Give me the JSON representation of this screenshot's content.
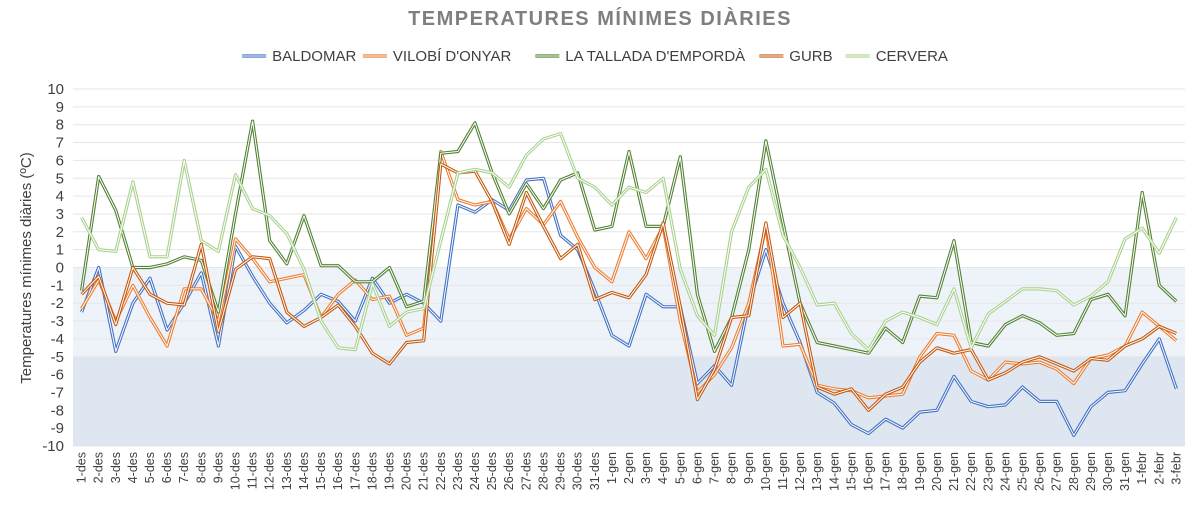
{
  "chart_data": {
    "type": "line",
    "title": "TEMPERATURES MÍNIMES DIÀRIES",
    "ylabel": "Temperatures mínimes diàries (ºC)",
    "xlabel": "",
    "ylim": [
      -10,
      10
    ],
    "yticks": [
      10,
      9,
      8,
      7,
      6,
      5,
      4,
      3,
      2,
      1,
      0,
      -1,
      -2,
      -3,
      -4,
      -5,
      -6,
      -7,
      -8,
      -9,
      -10
    ],
    "legend_position": "top",
    "grid": true,
    "bands": [
      {
        "from": 0,
        "to": -5,
        "color": "#eef3f9"
      },
      {
        "from": -5,
        "to": -10,
        "color": "#dee6f1"
      }
    ],
    "categories": [
      "1-des",
      "2-des",
      "3-des",
      "4-des",
      "5-des",
      "6-des",
      "7-des",
      "8-des",
      "9-des",
      "10-des",
      "11-des",
      "12-des",
      "13-des",
      "14-des",
      "15-des",
      "16-des",
      "17-des",
      "18-des",
      "19-des",
      "20-des",
      "21-des",
      "22-des",
      "23-des",
      "24-des",
      "25-des",
      "26-des",
      "27-des",
      "28-des",
      "29-des",
      "30-des",
      "31-des",
      "1-gen",
      "2-gen",
      "3-gen",
      "4-gen",
      "5-gen",
      "6-gen",
      "7-gen",
      "8-gen",
      "9-gen",
      "10-gen",
      "11-gen",
      "12-gen",
      "13-gen",
      "14-gen",
      "15-gen",
      "16-gen",
      "17-gen",
      "18-gen",
      "19-gen",
      "20-gen",
      "21-gen",
      "22-gen",
      "23-gen",
      "24-gen",
      "25-gen",
      "26-gen",
      "27-gen",
      "28-gen",
      "29-gen",
      "30-gen",
      "31-gen",
      "1-febr",
      "2-febr",
      "3-febr"
    ],
    "series": [
      {
        "name": "BALDOMAR",
        "color": "#4472c4",
        "values": [
          -2.5,
          0,
          -4.7,
          -2,
          -0.6,
          -3.5,
          -2,
          -0.3,
          -4.4,
          1.2,
          -0.5,
          -2,
          -3.1,
          -2.4,
          -1.5,
          -1.9,
          -3,
          -0.6,
          -2,
          -1.5,
          -2,
          -3,
          3.5,
          3.1,
          3.8,
          3.2,
          4.9,
          5,
          1.8,
          1,
          -1.3,
          -3.8,
          -4.4,
          -1.5,
          -2.2,
          -2.2,
          -6.5,
          -5.5,
          -6.6,
          -2,
          1,
          -2,
          -4.2,
          -7,
          -7.6,
          -8.8,
          -9.3,
          -8.5,
          -9,
          -8.1,
          -8,
          -6.1,
          -7.5,
          -7.8,
          -7.7,
          -6.7,
          -7.5,
          -7.5,
          -9.4,
          -7.8,
          -7,
          -6.9,
          -5.4,
          -4,
          -6.8
        ]
      },
      {
        "name": "VILOBÍ D'ONYAR",
        "color": "#ed7d31",
        "values": [
          -2.3,
          -0.7,
          -3,
          -1,
          -2.8,
          -4.4,
          -1.2,
          -1.2,
          -3,
          1.6,
          0.5,
          -0.8,
          -0.6,
          -0.4,
          -2.8,
          -1.5,
          -0.7,
          -1.8,
          -1.6,
          -3.8,
          -3.4,
          6.5,
          3.8,
          3.5,
          3.7,
          1.6,
          3.3,
          2.4,
          3.7,
          1.7,
          0,
          -0.8,
          2,
          0.5,
          2.3,
          -3,
          -7,
          -6,
          -4.5,
          -2,
          2.3,
          -4.4,
          -4.3,
          -6.6,
          -6.8,
          -6.9,
          -7.3,
          -7.2,
          -7.1,
          -5,
          -3.7,
          -3.8,
          -5.8,
          -6.3,
          -5.3,
          -5.4,
          -5.3,
          -5.7,
          -6.5,
          -5.1,
          -4.9,
          -4.4,
          -2.5,
          -3.3,
          -4.1
        ]
      },
      {
        "name": "LA TALLADA D'EMPORDÀ",
        "color": "#548235",
        "values": [
          -1.3,
          5.1,
          3.2,
          0,
          0,
          0.2,
          0.6,
          0.4,
          -2.5,
          3,
          8.2,
          1.5,
          0.2,
          2.9,
          0.1,
          0.1,
          -0.8,
          -0.8,
          0,
          -2.2,
          -1.9,
          6.4,
          6.5,
          8.1,
          5.3,
          3,
          4.7,
          3.3,
          4.9,
          5.3,
          2.1,
          2.3,
          6.5,
          2.3,
          2.3,
          6.2,
          -1.5,
          -4.7,
          -2.8,
          1,
          7.1,
          2.5,
          -2,
          -4.2,
          -4.4,
          -4.6,
          -4.8,
          -3.4,
          -4.2,
          -1.6,
          -1.7,
          1.5,
          -4.2,
          -4.4,
          -3.2,
          -2.7,
          -3.1,
          -3.8,
          -3.7,
          -1.8,
          -1.5,
          -2.7,
          4.2,
          -1,
          -1.9
        ]
      },
      {
        "name": "GURB",
        "color": "#c55a11",
        "values": [
          -1.5,
          -0.5,
          -3.2,
          0,
          -1.5,
          -2,
          -2.1,
          1.3,
          -3.6,
          -0.1,
          0.6,
          0.5,
          -2.5,
          -3.3,
          -2.8,
          -2.1,
          -3.3,
          -4.8,
          -5.4,
          -4.2,
          -4.1,
          5.8,
          5.3,
          5.4,
          3.7,
          1.3,
          4.2,
          2.3,
          0.5,
          1.3,
          -1.8,
          -1.4,
          -1.7,
          -0.4,
          2.5,
          -2.2,
          -7.4,
          -5.7,
          -2.8,
          -2.7,
          2.5,
          -2.8,
          -2,
          -6.7,
          -7.1,
          -6.8,
          -8,
          -7.1,
          -6.7,
          -5.3,
          -4.5,
          -4.8,
          -4.6,
          -6.3,
          -5.9,
          -5.3,
          -5,
          -5.4,
          -5.8,
          -5.1,
          -5.2,
          -4.4,
          -4,
          -3.3,
          -3.7
        ]
      },
      {
        "name": "CERVERA",
        "color": "#a9d18e",
        "values": [
          2.8,
          1,
          0.9,
          4.8,
          0.6,
          0.6,
          6,
          1.5,
          0.9,
          5.2,
          3.3,
          2.9,
          1.9,
          -0.1,
          -3,
          -4.5,
          -4.6,
          -0.9,
          -3.3,
          -2.5,
          -2.3,
          1.5,
          5.3,
          5.5,
          5.3,
          4.5,
          6.3,
          7.2,
          7.5,
          5,
          4.5,
          3.5,
          4.5,
          4.2,
          5,
          -0.1,
          -2.7,
          -3.8,
          2,
          4.5,
          5.5,
          1.8,
          0,
          -2.1,
          -2,
          -3.7,
          -4.6,
          -3,
          -2.5,
          -2.8,
          -3.2,
          -1.2,
          -4.5,
          -2.6,
          -1.9,
          -1.2,
          -1.2,
          -1.3,
          -2.1,
          -1.6,
          -0.8,
          1.6,
          2.2,
          0.8,
          2.8
        ]
      }
    ]
  }
}
